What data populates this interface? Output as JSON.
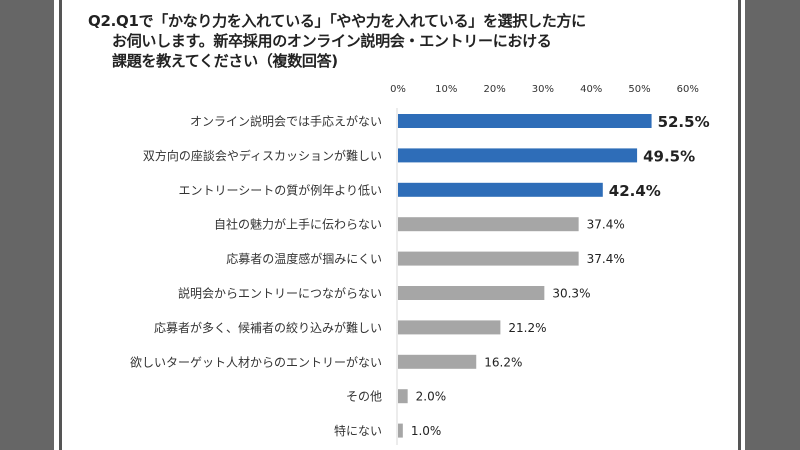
{
  "title_lines": [
    "Q2.Q1で「かなり力を入れている」「やや力を入れている」を選択した方に",
    "お伺いします。新卒採用のオンライン説明会・エントリーにおける",
    "課題を教えてください（複数回答)"
  ],
  "chart_data": {
    "type": "bar",
    "orientation": "horizontal",
    "title": "Q2.Q1で「かなり力を入れている」「やや力を入れている」を選択した方にお伺いします。新卒採用のオンライン説明会・エントリーにおける課題を教えてください（複数回答)",
    "categories": [
      "オンライン説明会では手応えがない",
      "双方向の座談会やディスカッションが難しい",
      "エントリーシートの質が例年より低い",
      "自社の魅力が上手に伝わらない",
      "応募者の温度感が掴みにくい",
      "説明会からエントリーにつながらない",
      "応募者が多く、候補者の絞り込みが難しい",
      "欲しいターゲット人材からのエントリーがない",
      "その他",
      "特にない"
    ],
    "values": [
      52.5,
      49.5,
      42.4,
      37.4,
      37.4,
      30.3,
      21.2,
      16.2,
      2.0,
      1.0
    ],
    "value_labels": [
      "52.5%",
      "49.5%",
      "42.4%",
      "37.4%",
      "37.4%",
      "30.3%",
      "21.2%",
      "16.2%",
      "2.0%",
      "1.0%"
    ],
    "highlighted_count": 3,
    "x_ticks": [
      "0%",
      "10%",
      "20%",
      "30%",
      "40%",
      "50%",
      "60%"
    ],
    "xlim": [
      0,
      60
    ],
    "axis_position": "top",
    "grid": false,
    "colors": {
      "highlight": "#2E6DB8",
      "normal": "#A6A6A6"
    }
  }
}
